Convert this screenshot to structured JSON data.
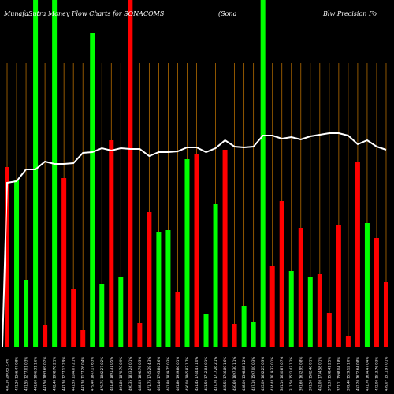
{
  "chart_data": {
    "type": "bar",
    "title_parts": [
      "MunafaSutra  Money Flow  Charts for SONACOMS",
      "(Sona",
      "Blw  Precision  Fo"
    ],
    "colors": {
      "background": "#000000",
      "up": "#00ff00",
      "down": "#ff0000",
      "line": "#ffffff",
      "grid": "#b36b00"
    },
    "ylim": [
      0,
      440
    ],
    "line_ylim": [
      0,
      440
    ],
    "grid": true,
    "series": [
      {
        "values": [
          228,
          211,
          85,
          440,
          28,
          440,
          214,
          73,
          21,
          398,
          80,
          262,
          88,
          440,
          30,
          171,
          145,
          148,
          70,
          238,
          244,
          41,
          181,
          250,
          29,
          52,
          31,
          440,
          103,
          185,
          96,
          151,
          89,
          92,
          43,
          155,
          14,
          234,
          157,
          138,
          82
        ],
        "directions": [
          "down",
          "up",
          "up",
          "up",
          "down",
          "up",
          "down",
          "down",
          "down",
          "up",
          "up",
          "down",
          "up",
          "down",
          "down",
          "down",
          "up",
          "up",
          "down",
          "up",
          "down",
          "up",
          "up",
          "down",
          "down",
          "up",
          "up",
          "up",
          "down",
          "down",
          "up",
          "down",
          "up",
          "down",
          "down",
          "down",
          "down",
          "down",
          "up",
          "down",
          "down"
        ]
      },
      {
        "type": "line",
        "values": [
          208,
          210,
          225,
          225,
          235,
          232,
          232,
          233,
          246,
          247,
          252,
          249,
          252,
          251,
          251,
          242,
          247,
          247,
          248,
          253,
          253,
          247,
          252,
          262,
          254,
          253,
          254,
          268,
          268,
          264,
          266,
          263,
          267,
          269,
          271,
          271,
          268,
          257,
          262,
          254,
          250
        ]
      }
    ],
    "x_labels": [
      "430.10 290.65 2.4%",
      "431.20 1266.47 0.8%",
      "431.55 1277.01 0.3%",
      "441.60 1806.31 1.6%",
      "441.50 1893.69 0.2%",
      "432.40 1998.78 2.1%",
      "441.30 1277.13 2.9%",
      "441.55 1184.07 2.1%",
      "441.30 1177.26 0.4%",
      "479.40 1847.17 6.3%",
      "479.75 1882.27 0.2%",
      "481.30 1891.31 0.5%",
      "491.80 1870.70 0.9%",
      "490.35 1833.24 0.1%",
      "488.05 1896.79 0.3%",
      "471.75 1745.29 4.3%",
      "461.40 1793.84 2.6%",
      "461.80 1839.75 0.3%",
      "461.80 1939.86 0.1%",
      "456.00 1865.83 1.7%",
      "451.45 1744.47 1.0%",
      "451.50 1712.84 0.1%",
      "437.70 1717.26 2.1%",
      "455.55 1766.89 1.6%",
      "450.60 1697.30 1.1%",
      "438.00 1598.08 1.2%",
      "437.10 1597.00 0.3%",
      "435.09 1652.25 0.3%",
      "434.48 1619.32 0.1%",
      "381.10 1630.87 0.7%",
      "311.50 1522.47 1.2%",
      "391.60 1632.95 0.8%",
      "391.50 1582.46 0.1%",
      "452.00 1734.58 0.1%",
      "371.33 1538.41 2.5%",
      "377.11 1598.04 1.8%",
      "399.40 1529.12 1.0%",
      "452.20 1672.64 0.8%",
      "431.70 1634.47 0.4%",
      "432.00 1513.76 0.3%",
      "439.07 1511.97 0.1%"
    ]
  }
}
